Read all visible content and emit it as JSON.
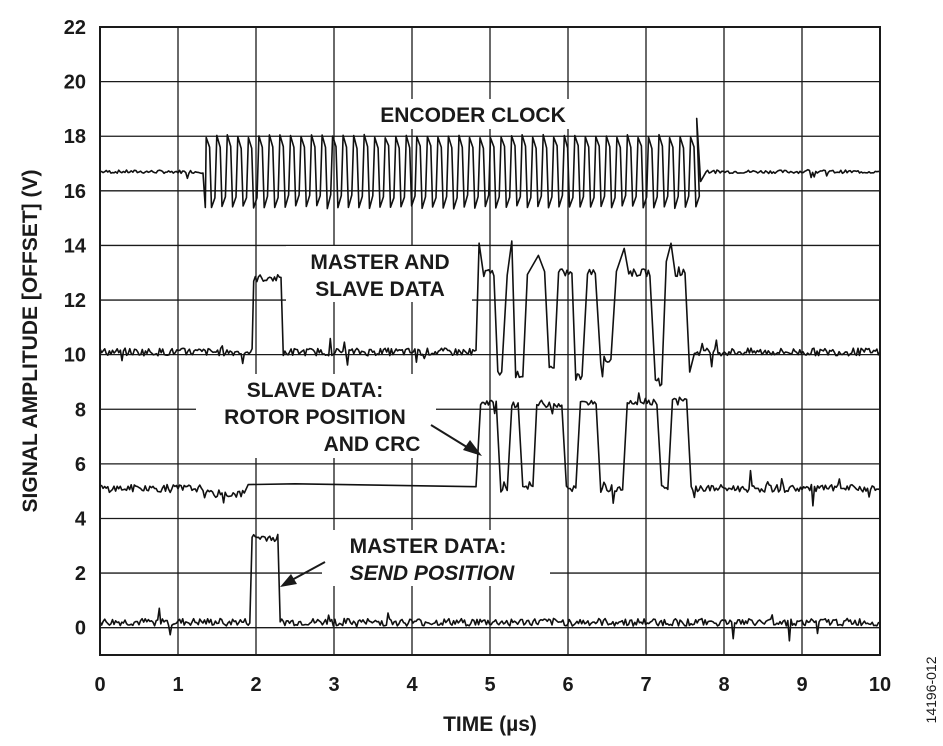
{
  "chart_data": {
    "type": "line",
    "xlabel": "TIME (µs)",
    "ylabel": "SIGNAL AMPLITUDE [OFFSET] (V)",
    "xlim": [
      0,
      10
    ],
    "ylim": [
      -1,
      22
    ],
    "xticks": [
      0,
      1,
      2,
      3,
      4,
      5,
      6,
      7,
      8,
      9,
      10
    ],
    "yticks": [
      0,
      2,
      4,
      6,
      8,
      10,
      12,
      14,
      16,
      18,
      20,
      22
    ],
    "grid": true,
    "figure_id": "14196-012",
    "annotations": [
      {
        "lines": [
          "ENCODER CLOCK"
        ],
        "italic_lines": []
      },
      {
        "lines": [
          "MASTER AND",
          "SLAVE DATA"
        ],
        "italic_lines": []
      },
      {
        "lines": [
          "SLAVE DATA:",
          "ROTOR POSITION",
          "AND CRC"
        ],
        "italic_lines": []
      },
      {
        "lines": [
          "MASTER DATA:",
          "SEND POSITION"
        ],
        "italic_lines": [
          1
        ]
      }
    ],
    "series": [
      {
        "name": "ENCODER CLOCK",
        "baseline": 16.7,
        "low": 15.4,
        "high": 18.0,
        "clock_start": 1.35,
        "clock_end": 7.65,
        "clock_period": 0.135
      },
      {
        "name": "MASTER AND SLAVE DATA",
        "baseline": 10.1,
        "points": [
          [
            0,
            10.1
          ],
          [
            1.95,
            10.1
          ],
          [
            1.97,
            12.8
          ],
          [
            2.32,
            12.8
          ],
          [
            2.35,
            10.1
          ],
          [
            4.82,
            10.1
          ],
          [
            4.86,
            14.0
          ],
          [
            4.92,
            13.0
          ],
          [
            5.05,
            13.0
          ],
          [
            5.1,
            9.3
          ],
          [
            5.15,
            9.3
          ],
          [
            5.22,
            13.0
          ],
          [
            5.28,
            14.1
          ],
          [
            5.33,
            9.3
          ],
          [
            5.42,
            9.3
          ],
          [
            5.48,
            13.0
          ],
          [
            5.62,
            13.5
          ],
          [
            5.7,
            13.0
          ],
          [
            5.76,
            9.5
          ],
          [
            5.82,
            9.5
          ],
          [
            5.88,
            13.0
          ],
          [
            6.05,
            13.0
          ],
          [
            6.1,
            9.2
          ],
          [
            6.18,
            9.2
          ],
          [
            6.25,
            13.0
          ],
          [
            6.35,
            13.0
          ],
          [
            6.42,
            9.8
          ],
          [
            6.55,
            9.8
          ],
          [
            6.62,
            13.0
          ],
          [
            6.72,
            14.0
          ],
          [
            6.78,
            13.0
          ],
          [
            7.05,
            13.0
          ],
          [
            7.12,
            9.0
          ],
          [
            7.2,
            9.0
          ],
          [
            7.26,
            13.5
          ],
          [
            7.32,
            14.0
          ],
          [
            7.38,
            13.0
          ],
          [
            7.5,
            13.0
          ],
          [
            7.56,
            9.3
          ],
          [
            7.62,
            10.1
          ],
          [
            10,
            10.1
          ]
        ]
      },
      {
        "name": "SLAVE DATA: ROTOR POSITION AND CRC",
        "baseline": 5.1,
        "points": [
          [
            0,
            5.1
          ],
          [
            1.3,
            5.1
          ],
          [
            1.32,
            4.9
          ],
          [
            1.85,
            4.9
          ],
          [
            1.9,
            5.3
          ],
          [
            2.5,
            5.2
          ],
          [
            4.82,
            5.1
          ],
          [
            4.88,
            8.2
          ],
          [
            5.08,
            8.2
          ],
          [
            5.14,
            5.1
          ],
          [
            5.22,
            5.1
          ],
          [
            5.28,
            8.2
          ],
          [
            5.36,
            8.2
          ],
          [
            5.42,
            5.2
          ],
          [
            5.55,
            5.2
          ],
          [
            5.6,
            8.2
          ],
          [
            5.92,
            8.2
          ],
          [
            5.98,
            5.1
          ],
          [
            6.1,
            5.1
          ],
          [
            6.16,
            8.2
          ],
          [
            6.36,
            8.2
          ],
          [
            6.42,
            5.1
          ],
          [
            6.7,
            5.1
          ],
          [
            6.76,
            8.3
          ],
          [
            7.14,
            8.3
          ],
          [
            7.2,
            5.1
          ],
          [
            7.28,
            5.1
          ],
          [
            7.34,
            8.3
          ],
          [
            7.52,
            8.3
          ],
          [
            7.58,
            5.1
          ],
          [
            10,
            5.1
          ]
        ]
      },
      {
        "name": "MASTER DATA: SEND POSITION",
        "baseline": 0.2,
        "points": [
          [
            0,
            0.2
          ],
          [
            1.92,
            0.2
          ],
          [
            1.95,
            3.3
          ],
          [
            2.28,
            3.3
          ],
          [
            2.31,
            0.2
          ],
          [
            10,
            0.2
          ]
        ]
      }
    ]
  }
}
